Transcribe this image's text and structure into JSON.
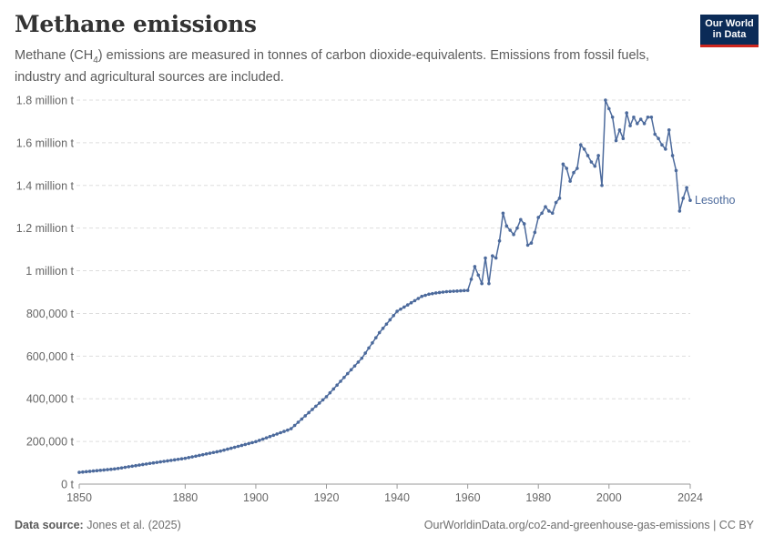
{
  "header": {
    "title": "Methane emissions",
    "subtitle_before": "Methane (CH",
    "subtitle_sub": "4",
    "subtitle_after": ") emissions are measured in tonnes of carbon dioxide-equivalents. Emissions from fossil fuels, industry and agricultural sources are included."
  },
  "logo": {
    "line1": "Our World",
    "line2": "in Data"
  },
  "footer": {
    "source_label": "Data source:",
    "source_text": "Jones et al. (2025)",
    "url_license": "OurWorldinData.org/co2-and-greenhouse-gas-emissions | CC BY"
  },
  "colors": {
    "series": "#4c6a9c",
    "grid": "#dddddd",
    "axis": "#999999",
    "logo_bg": "#0b2b57",
    "logo_bar": "#ce261e"
  },
  "chart_data": {
    "type": "line",
    "title": "Methane emissions",
    "ylim": [
      0,
      1800000
    ],
    "xlim": [
      1850,
      2023
    ],
    "y_ticks": [
      {
        "value": 0,
        "label": "0 t"
      },
      {
        "value": 200000,
        "label": "200,000 t"
      },
      {
        "value": 400000,
        "label": "400,000 t"
      },
      {
        "value": 600000,
        "label": "600,000 t"
      },
      {
        "value": 800000,
        "label": "800,000 t"
      },
      {
        "value": 1000000,
        "label": "1 million t"
      },
      {
        "value": 1200000,
        "label": "1.2 million t"
      },
      {
        "value": 1400000,
        "label": "1.4 million t"
      },
      {
        "value": 1600000,
        "label": "1.6 million t"
      },
      {
        "value": 1800000,
        "label": "1.8 million t"
      }
    ],
    "x_ticks": [
      {
        "value": 1850,
        "label": "1850"
      },
      {
        "value": 1880,
        "label": "1880"
      },
      {
        "value": 1900,
        "label": "1900"
      },
      {
        "value": 1920,
        "label": "1920"
      },
      {
        "value": 1940,
        "label": "1940"
      },
      {
        "value": 1960,
        "label": "1960"
      },
      {
        "value": 1980,
        "label": "1980"
      },
      {
        "value": 2000,
        "label": "2000"
      },
      {
        "value": 2024,
        "label": "2024"
      }
    ],
    "grid": true,
    "series": [
      {
        "name": "Lesotho",
        "x": [
          1850,
          1851,
          1852,
          1853,
          1854,
          1855,
          1856,
          1857,
          1858,
          1859,
          1860,
          1861,
          1862,
          1863,
          1864,
          1865,
          1866,
          1867,
          1868,
          1869,
          1870,
          1871,
          1872,
          1873,
          1874,
          1875,
          1876,
          1877,
          1878,
          1879,
          1880,
          1881,
          1882,
          1883,
          1884,
          1885,
          1886,
          1887,
          1888,
          1889,
          1890,
          1891,
          1892,
          1893,
          1894,
          1895,
          1896,
          1897,
          1898,
          1899,
          1900,
          1901,
          1902,
          1903,
          1904,
          1905,
          1906,
          1907,
          1908,
          1909,
          1910,
          1911,
          1912,
          1913,
          1914,
          1915,
          1916,
          1917,
          1918,
          1919,
          1920,
          1921,
          1922,
          1923,
          1924,
          1925,
          1926,
          1927,
          1928,
          1929,
          1930,
          1931,
          1932,
          1933,
          1934,
          1935,
          1936,
          1937,
          1938,
          1939,
          1940,
          1941,
          1942,
          1943,
          1944,
          1945,
          1946,
          1947,
          1948,
          1949,
          1950,
          1951,
          1952,
          1953,
          1954,
          1955,
          1956,
          1957,
          1958,
          1959,
          1960,
          1961,
          1962,
          1963,
          1964,
          1965,
          1966,
          1967,
          1968,
          1969,
          1970,
          1971,
          1972,
          1973,
          1974,
          1975,
          1976,
          1977,
          1978,
          1979,
          1980,
          1981,
          1982,
          1983,
          1984,
          1985,
          1986,
          1987,
          1988,
          1989,
          1990,
          1991,
          1992,
          1993,
          1994,
          1995,
          1996,
          1997,
          1998,
          1999,
          2000,
          2001,
          2002,
          2003,
          2004,
          2005,
          2006,
          2007,
          2008,
          2009,
          2010,
          2011,
          2012,
          2013,
          2014,
          2015,
          2016,
          2017,
          2018,
          2019,
          2020,
          2021,
          2022,
          2023
        ],
        "values": [
          55000,
          56600,
          58200,
          59800,
          61400,
          63000,
          64600,
          66200,
          67800,
          69400,
          71000,
          73600,
          76200,
          78800,
          81400,
          84000,
          86600,
          89200,
          91800,
          94400,
          97000,
          99400,
          101800,
          104200,
          106600,
          109000,
          111400,
          113800,
          116200,
          118600,
          121000,
          124400,
          127800,
          131200,
          134600,
          138000,
          141400,
          144800,
          148200,
          151600,
          155000,
          159400,
          163800,
          168200,
          172600,
          177000,
          181400,
          185800,
          190200,
          194600,
          199000,
          205000,
          211000,
          217000,
          223000,
          229000,
          235000,
          241000,
          247000,
          253000,
          260000,
          275000,
          290000,
          305000,
          320000,
          335000,
          350000,
          365000,
          380000,
          395000,
          410000,
          428000,
          446000,
          464000,
          482000,
          500000,
          518000,
          536000,
          554000,
          572000,
          590000,
          614000,
          638000,
          662000,
          686000,
          710000,
          730000,
          750000,
          770000,
          790000,
          810000,
          820000,
          830000,
          840000,
          850000,
          860000,
          870000,
          880000,
          885000,
          890000,
          893000,
          896000,
          898000,
          900000,
          902000,
          903000,
          904000,
          905000,
          906000,
          907000,
          908000,
          960000,
          1020000,
          980000,
          940000,
          1060000,
          940000,
          1070000,
          1060000,
          1140000,
          1270000,
          1210000,
          1190000,
          1170000,
          1200000,
          1240000,
          1220000,
          1120000,
          1130000,
          1180000,
          1250000,
          1270000,
          1300000,
          1280000,
          1270000,
          1320000,
          1340000,
          1500000,
          1480000,
          1420000,
          1460000,
          1480000,
          1590000,
          1570000,
          1540000,
          1510000,
          1490000,
          1540000,
          1400000,
          1800000,
          1760000,
          1720000,
          1610000,
          1660000,
          1620000,
          1740000,
          1680000,
          1720000,
          1690000,
          1710000,
          1690000,
          1720000,
          1720000,
          1640000,
          1620000,
          1590000,
          1570000,
          1660000,
          1540000,
          1470000,
          1280000,
          1340000,
          1390000,
          1330000
        ]
      }
    ]
  }
}
